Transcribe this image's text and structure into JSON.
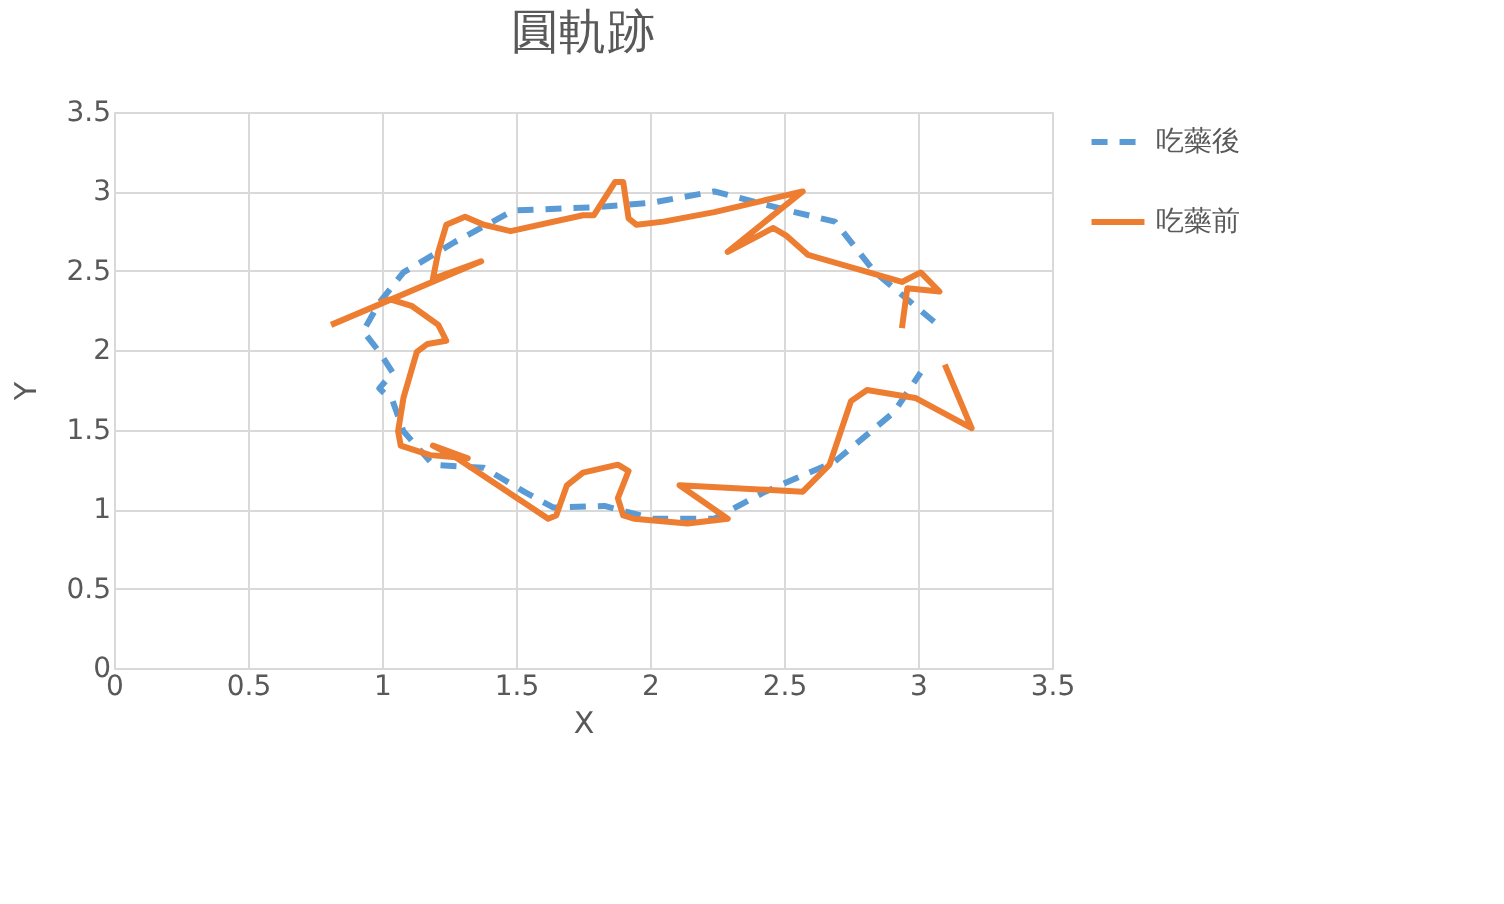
{
  "chart_data": {
    "type": "line",
    "title": "圓軌跡",
    "xlabel": "X",
    "ylabel": "Y",
    "xlim": [
      0,
      3.5
    ],
    "ylim": [
      0,
      3.5
    ],
    "xticks": [
      0,
      0.5,
      1,
      1.5,
      2,
      2.5,
      3,
      3.5
    ],
    "yticks": [
      0,
      0.5,
      1,
      1.5,
      2,
      2.5,
      3,
      3.5
    ],
    "grid": true,
    "legend": "right",
    "marker": "none",
    "series": [
      {
        "name": "吃藥後",
        "color": "#5b9bd5",
        "line_style": "dashed",
        "x": [
          3.06,
          2.84,
          2.69,
          2.54,
          2.24,
          2.01,
          1.79,
          1.49,
          1.27,
          1.08,
          0.99,
          0.93,
          0.99,
          1.04,
          0.99,
          1.04,
          1.08,
          1.19,
          1.38,
          1.53,
          1.64,
          1.83,
          2.01,
          2.24,
          2.43,
          2.69,
          2.91,
          3.01
        ],
        "values": [
          2.18,
          2.49,
          2.81,
          2.87,
          3.0,
          2.93,
          2.9,
          2.88,
          2.68,
          2.49,
          2.3,
          2.12,
          1.99,
          1.86,
          1.76,
          1.68,
          1.49,
          1.28,
          1.26,
          1.11,
          1.01,
          1.02,
          0.94,
          0.94,
          1.11,
          1.3,
          1.61,
          1.86
        ]
      },
      {
        "name": "吃藥前",
        "color": "#ed7d31",
        "line_style": "solid",
        "x": [
          0.81,
          1.37,
          1.19,
          1.21,
          1.24,
          1.31,
          1.38,
          1.48,
          1.75,
          1.79,
          1.87,
          1.9,
          1.92,
          1.95,
          2.05,
          2.24,
          2.57,
          2.29,
          2.46,
          2.51,
          2.59,
          2.94,
          3.01,
          3.08,
          2.96,
          2.94,
          null,
          3.1,
          3.2,
          2.99,
          2.81,
          2.75,
          2.67,
          2.57,
          2.11,
          2.29,
          2.14,
          1.94,
          1.9,
          1.88,
          1.92,
          1.88,
          1.75,
          1.69,
          1.65,
          1.62,
          1.28,
          1.19,
          1.32,
          1.18,
          1.07,
          1.06,
          1.08,
          1.13,
          1.17,
          1.24,
          1.21,
          1.11,
          1.03,
          0.99
        ],
        "values": [
          2.16,
          2.56,
          2.45,
          2.62,
          2.79,
          2.84,
          2.79,
          2.75,
          2.85,
          2.85,
          3.06,
          3.06,
          2.83,
          2.79,
          2.81,
          2.87,
          3.0,
          2.62,
          2.77,
          2.72,
          2.6,
          2.43,
          2.49,
          2.37,
          2.39,
          2.14,
          null,
          1.91,
          1.51,
          1.7,
          1.75,
          1.68,
          1.28,
          1.11,
          1.15,
          0.94,
          0.91,
          0.94,
          0.96,
          1.07,
          1.24,
          1.28,
          1.23,
          1.15,
          0.96,
          0.94,
          1.32,
          1.4,
          1.32,
          1.34,
          1.4,
          1.49,
          1.7,
          1.99,
          2.04,
          2.06,
          2.16,
          2.28,
          2.32,
          2.3
        ]
      }
    ]
  }
}
